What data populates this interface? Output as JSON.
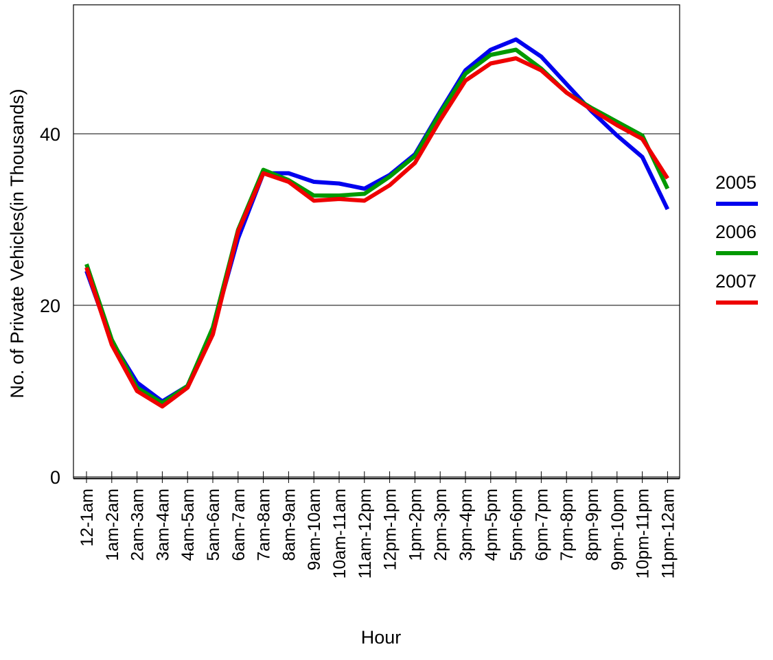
{
  "chart_data": {
    "type": "line",
    "title": "",
    "xlabel": "Hour",
    "ylabel": "No. of Private Vehicles(in Thousands)",
    "ylim": [
      0,
      55
    ],
    "yticks": [
      0,
      20,
      40
    ],
    "grid": "horizontal at y ticks",
    "legend_position": "right",
    "categories": [
      "12-1am",
      "1am-2am",
      "2am-3am",
      "3am-4am",
      "4am-5am",
      "5am-6am",
      "6am-7am",
      "7am-8am",
      "8am-9am",
      "9am-10am",
      "10am-11am",
      "11am-12pm",
      "12pm-1pm",
      "1pm-2pm",
      "2pm-3pm",
      "3pm-4pm",
      "4pm-5pm",
      "5pm-6pm",
      "6pm-7pm",
      "7pm-8pm",
      "8pm-9pm",
      "9pm-10pm",
      "10pm-11pm",
      "11pm-12am"
    ],
    "series": [
      {
        "name": "2005",
        "color": "#0000ee",
        "values": [
          24.0,
          15.8,
          11.0,
          8.8,
          10.6,
          17.2,
          27.8,
          35.4,
          35.4,
          34.4,
          34.2,
          33.6,
          35.2,
          37.6,
          42.6,
          47.4,
          49.8,
          51.0,
          49.0,
          45.8,
          42.6,
          39.8,
          37.3,
          31.2
        ]
      },
      {
        "name": "2006",
        "color": "#009900",
        "values": [
          24.8,
          16.0,
          10.4,
          8.6,
          10.6,
          17.4,
          28.8,
          35.8,
          34.6,
          32.8,
          32.8,
          33.0,
          35.0,
          37.4,
          42.4,
          47.0,
          49.2,
          49.8,
          47.6,
          44.8,
          43.0,
          41.4,
          39.8,
          33.6
        ]
      },
      {
        "name": "2007",
        "color": "#ee0000",
        "values": [
          24.4,
          15.4,
          10.0,
          8.2,
          10.4,
          16.6,
          28.6,
          35.4,
          34.4,
          32.2,
          32.4,
          32.2,
          34.0,
          36.6,
          41.6,
          46.2,
          48.2,
          48.8,
          47.4,
          44.8,
          42.8,
          41.0,
          39.4,
          34.8
        ]
      }
    ]
  }
}
